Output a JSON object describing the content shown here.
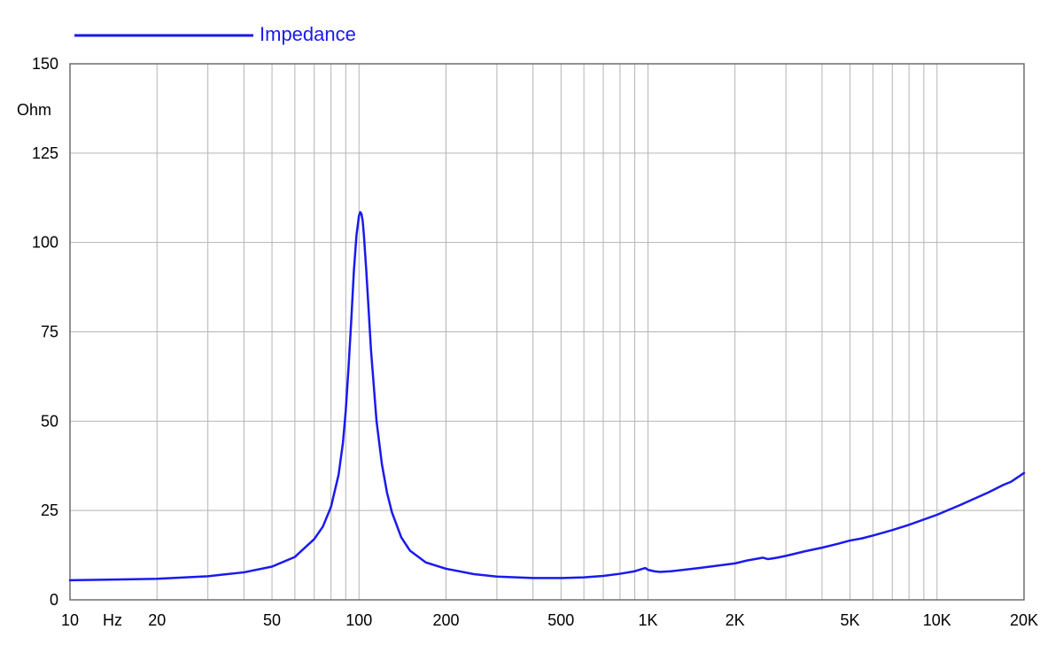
{
  "chart_data": {
    "type": "line",
    "legend": {
      "position": "top-left",
      "entries": [
        "Impedance"
      ]
    },
    "ylabel": "Ohm",
    "xunit": "Hz",
    "xscale": "log",
    "xlim": [
      10,
      20000
    ],
    "ylim": [
      0,
      150
    ],
    "grid": true,
    "x_tick_labels": [
      {
        "x": 10,
        "label": "10"
      },
      {
        "x": 20,
        "label": "20"
      },
      {
        "x": 50,
        "label": "50"
      },
      {
        "x": 100,
        "label": "100"
      },
      {
        "x": 200,
        "label": "200"
      },
      {
        "x": 500,
        "label": "500"
      },
      {
        "x": 1000,
        "label": "1K"
      },
      {
        "x": 2000,
        "label": "2K"
      },
      {
        "x": 5000,
        "label": "5K"
      },
      {
        "x": 10000,
        "label": "10K"
      },
      {
        "x": 20000,
        "label": "20K"
      }
    ],
    "y_ticks": [
      0,
      25,
      50,
      75,
      100,
      125,
      150
    ],
    "colors": {
      "series": "#1a1aee",
      "grid": "#b4b4b4",
      "axis": "#6e6e6e"
    },
    "series": [
      {
        "name": "Impedance",
        "x": [
          10,
          15,
          20,
          30,
          40,
          50,
          60,
          70,
          75,
          80,
          85,
          88,
          90,
          92,
          94,
          96,
          98,
          100,
          101,
          102,
          103,
          104,
          106,
          108,
          110,
          115,
          120,
          125,
          130,
          140,
          150,
          170,
          200,
          250,
          300,
          400,
          500,
          600,
          700,
          800,
          900,
          950,
          980,
          1000,
          1050,
          1100,
          1200,
          1500,
          2000,
          2200,
          2500,
          2600,
          2700,
          2800,
          3000,
          3500,
          4000,
          4500,
          5000,
          5500,
          6000,
          7000,
          8000,
          10000,
          12000,
          15000,
          17000,
          18000,
          20000
        ],
        "y": [
          5.5,
          5.7,
          5.9,
          6.6,
          7.7,
          9.3,
          12.0,
          17.0,
          20.5,
          26.0,
          35.0,
          44.0,
          53.0,
          65.0,
          78.0,
          92.0,
          102.0,
          107.5,
          108.5,
          108.0,
          106.0,
          102.0,
          92.0,
          81.0,
          70.0,
          50.0,
          38.0,
          30.0,
          24.5,
          17.5,
          13.8,
          10.5,
          8.7,
          7.2,
          6.5,
          6.1,
          6.1,
          6.3,
          6.7,
          7.3,
          8.0,
          8.6,
          8.9,
          8.4,
          8.0,
          7.8,
          8.0,
          8.9,
          10.2,
          11.0,
          11.8,
          11.4,
          11.6,
          11.8,
          12.3,
          13.6,
          14.6,
          15.6,
          16.6,
          17.2,
          18.0,
          19.5,
          21.0,
          23.8,
          26.5,
          30.0,
          32.2,
          33.0,
          35.5
        ]
      }
    ]
  }
}
